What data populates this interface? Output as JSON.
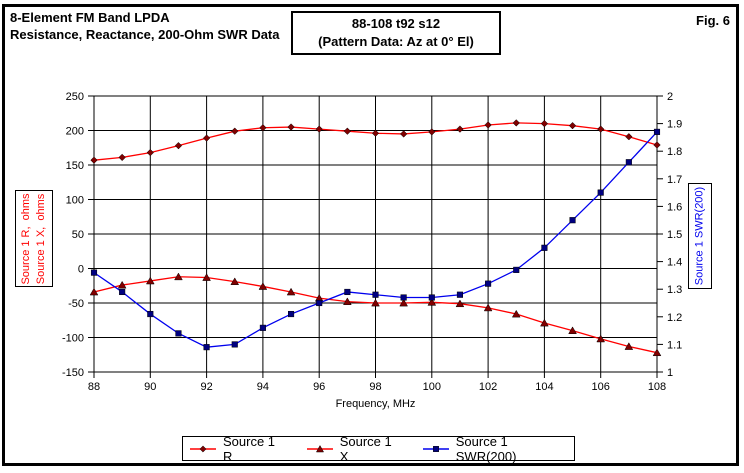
{
  "figure": {
    "title_line1": "8-Element FM Band LPDA",
    "title_line2": "Resistance, Reactance, 200-Ohm SWR Data",
    "header_box_line1": "88-108 t92 s12",
    "header_box_line2": "(Pattern Data: Az at 0° El)",
    "fig_label": "Fig. 6"
  },
  "axes": {
    "left_label_line1": "Source 1 R,  ohms",
    "left_label_line2": "Source 1 X,  ohms",
    "right_label": "Source 1 SWR(200)",
    "x_label": "Frequency, MHz"
  },
  "colors": {
    "grid": "#000000",
    "r_x_line": "#ff0000",
    "r_x_marker": "#800000",
    "swr_line": "#0000ee",
    "swr_marker": "#000080",
    "left_axis_text": "#ff0000",
    "right_axis_text": "#0000ee"
  },
  "legend": {
    "items": [
      {
        "label": "Source 1 R",
        "marker": "diamond"
      },
      {
        "label": "Source 1 X",
        "marker": "triangle"
      },
      {
        "label": "Source 1 SWR(200)",
        "marker": "square"
      }
    ]
  },
  "chart_data": {
    "type": "line",
    "title": "8-Element FM Band LPDA — Resistance, Reactance, 200-Ohm SWR Data",
    "xlabel": "Frequency, MHz",
    "ylabel_left": "Source 1 R, ohms / Source 1 X, ohms",
    "ylabel_right": "Source 1 SWR(200)",
    "grid": true,
    "legend_position": "bottom",
    "x_range": [
      88,
      108
    ],
    "x_ticks": [
      88,
      90,
      92,
      94,
      96,
      98,
      100,
      102,
      104,
      106,
      108
    ],
    "left_axis": {
      "min": -150,
      "max": 250,
      "step": 50,
      "ticks": [
        250,
        200,
        150,
        100,
        50,
        0,
        -50,
        -100,
        -150
      ]
    },
    "right_axis": {
      "min": 1,
      "max": 2,
      "step": 0.1,
      "ticks": [
        2,
        1.9,
        1.8,
        1.7,
        1.6,
        1.5,
        1.4,
        1.3,
        1.2,
        1.1,
        1
      ]
    },
    "x": [
      88,
      89,
      90,
      91,
      92,
      93,
      94,
      95,
      96,
      97,
      98,
      99,
      100,
      101,
      102,
      103,
      104,
      105,
      106,
      107,
      108
    ],
    "series": [
      {
        "name": "Source 1 R",
        "axis": "left",
        "marker": "diamond",
        "line_color": "#ff0000",
        "marker_color": "#800000",
        "values": [
          157,
          161,
          168,
          178,
          189,
          199,
          204,
          205,
          202,
          199,
          196,
          195,
          198,
          202,
          208,
          211,
          210,
          207,
          202,
          191,
          179
        ]
      },
      {
        "name": "Source 1 X",
        "axis": "left",
        "marker": "triangle",
        "line_color": "#ff0000",
        "marker_color": "#800000",
        "values": [
          -34,
          -24,
          -18,
          -12,
          -13,
          -19,
          -26,
          -34,
          -43,
          -48,
          -50,
          -50,
          -49,
          -51,
          -57,
          -66,
          -79,
          -90,
          -102,
          -113,
          -122
        ]
      },
      {
        "name": "Source 1 SWR(200)",
        "axis": "right",
        "marker": "square",
        "line_color": "#0000ee",
        "marker_color": "#000080",
        "values": [
          1.36,
          1.29,
          1.21,
          1.14,
          1.09,
          1.1,
          1.16,
          1.21,
          1.25,
          1.29,
          1.28,
          1.27,
          1.27,
          1.28,
          1.32,
          1.37,
          1.45,
          1.55,
          1.65,
          1.76,
          1.87
        ]
      }
    ]
  }
}
